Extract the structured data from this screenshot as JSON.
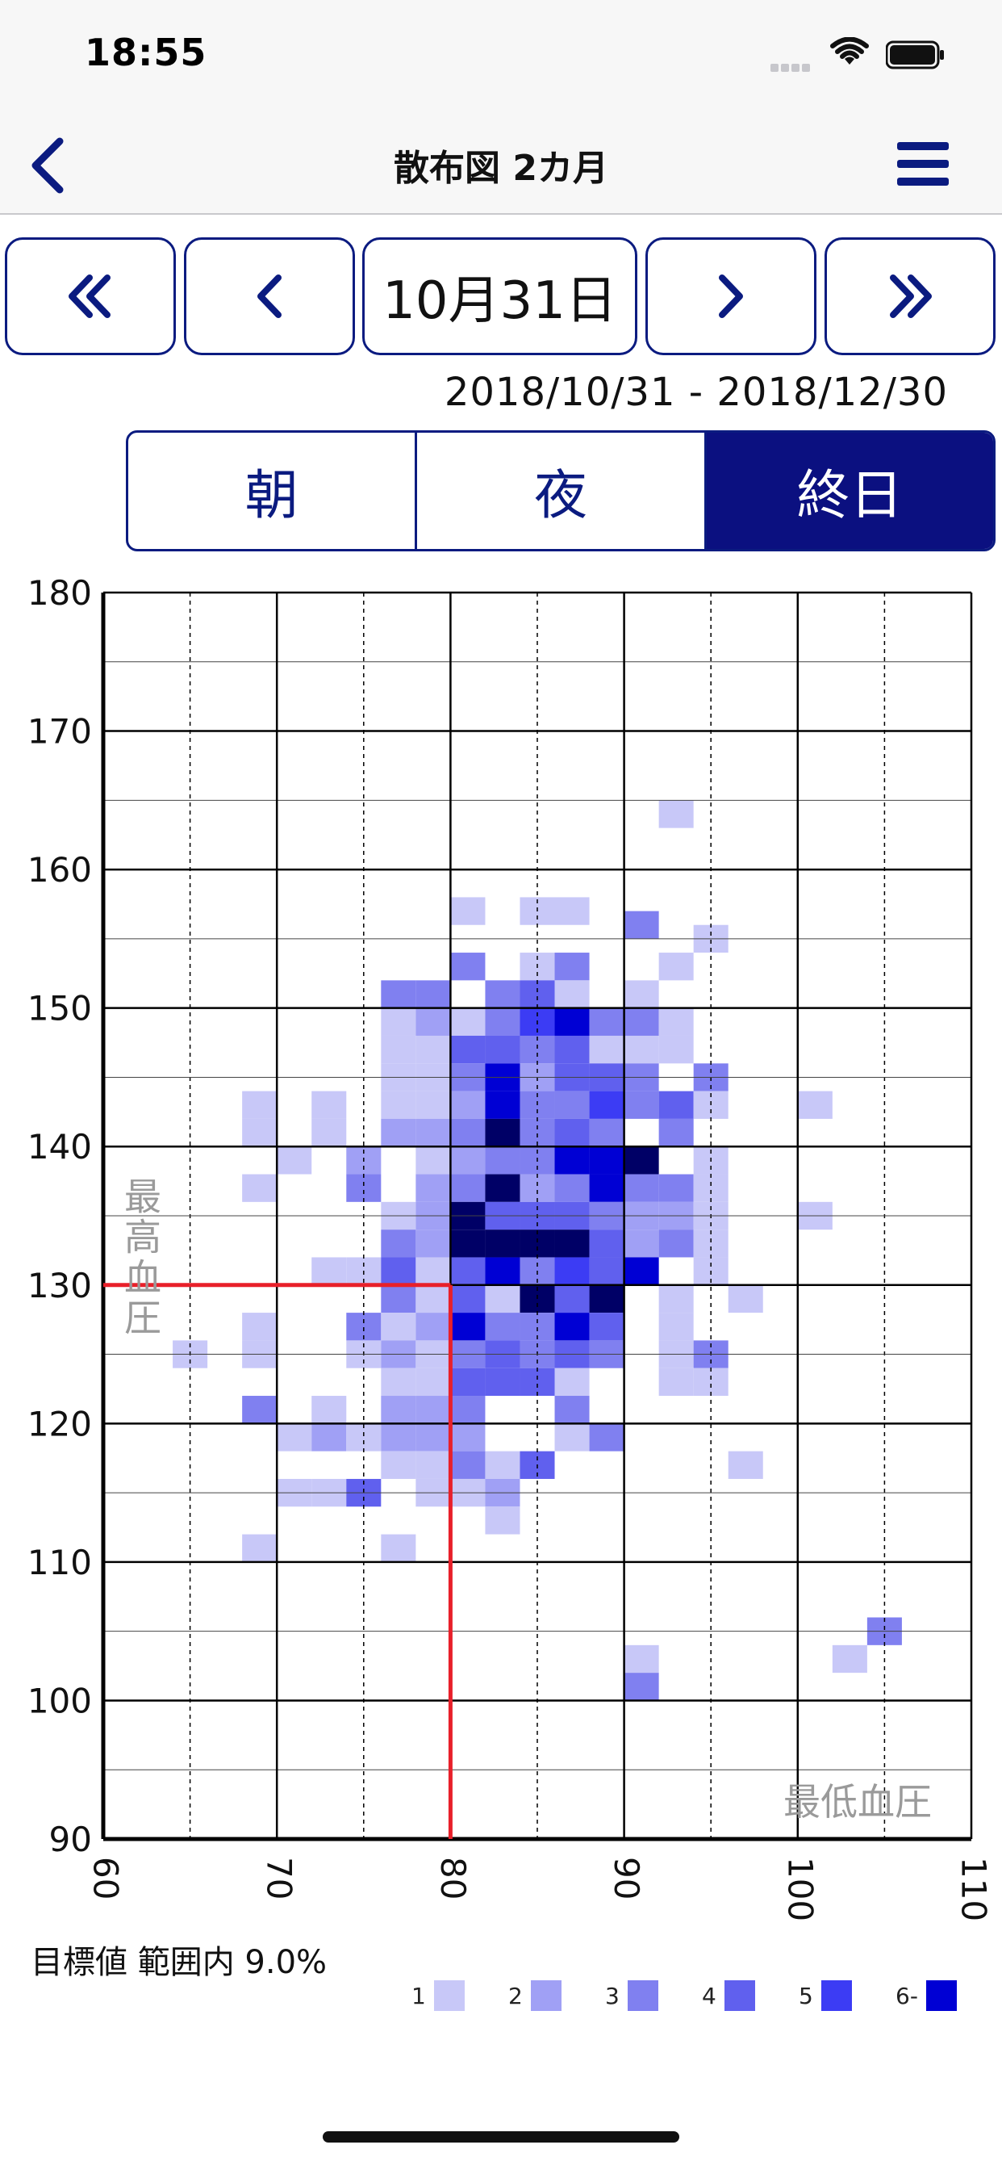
{
  "status": {
    "time": "18:55"
  },
  "nav": {
    "title": "散布図  2カ月"
  },
  "date_nav": {
    "current": "10月31日",
    "buttons": [
      "first-page",
      "previous",
      "next",
      "last-page"
    ]
  },
  "range": {
    "text": "2018/10/31 - 2018/12/30"
  },
  "segments": {
    "items": [
      "朝",
      "夜",
      "終日"
    ],
    "selected": "終日"
  },
  "summary": {
    "target_text": "目標値 範囲内  9.0%"
  },
  "legend": {
    "labels": [
      "1",
      "2",
      "3",
      "4",
      "5",
      "6-"
    ],
    "colors": [
      "#c8c8f8",
      "#a0a0f5",
      "#8080f0",
      "#6060ee",
      "#3c3cf4",
      "#0000d4"
    ]
  },
  "colors": {
    "accent": "#0b1b80",
    "target_line": "#e8202a",
    "grid": "#000000",
    "very_dark": "#000066"
  },
  "chart_data": {
    "type": "heatmap",
    "x_axis_label": "最低血圧",
    "y_axis_label": "最高血圧",
    "xlim": [
      60,
      110
    ],
    "ylim": [
      90,
      180
    ],
    "x_ticks": [
      60,
      70,
      80,
      90,
      100,
      110
    ],
    "y_ticks": [
      90,
      100,
      110,
      120,
      130,
      140,
      150,
      160,
      170,
      180
    ],
    "bin_size": {
      "x": 2,
      "y": 2
    },
    "target": {
      "x": 80,
      "y": 130
    },
    "cells": [
      [
        93,
        164,
        1
      ],
      [
        81,
        157,
        1
      ],
      [
        85,
        157,
        1
      ],
      [
        87,
        157,
        1
      ],
      [
        91,
        156,
        3
      ],
      [
        95,
        155,
        1
      ],
      [
        81,
        153,
        3
      ],
      [
        85,
        153,
        1
      ],
      [
        87,
        153,
        3
      ],
      [
        93,
        153,
        1
      ],
      [
        77,
        151,
        3
      ],
      [
        79,
        151,
        3
      ],
      [
        83,
        151,
        3
      ],
      [
        85,
        151,
        4
      ],
      [
        87,
        151,
        1
      ],
      [
        91,
        151,
        1
      ],
      [
        77,
        149,
        1
      ],
      [
        79,
        149,
        2
      ],
      [
        81,
        149,
        1
      ],
      [
        83,
        149,
        3
      ],
      [
        85,
        149,
        5
      ],
      [
        87,
        149,
        6
      ],
      [
        89,
        149,
        3
      ],
      [
        91,
        149,
        3
      ],
      [
        93,
        149,
        1
      ],
      [
        77,
        147,
        1
      ],
      [
        79,
        147,
        1
      ],
      [
        81,
        147,
        4
      ],
      [
        83,
        147,
        4
      ],
      [
        85,
        147,
        3
      ],
      [
        87,
        147,
        4
      ],
      [
        89,
        147,
        1
      ],
      [
        91,
        147,
        1
      ],
      [
        93,
        147,
        1
      ],
      [
        77,
        145,
        1
      ],
      [
        79,
        145,
        1
      ],
      [
        81,
        145,
        3
      ],
      [
        83,
        145,
        6
      ],
      [
        85,
        145,
        2
      ],
      [
        87,
        145,
        4
      ],
      [
        89,
        145,
        4
      ],
      [
        91,
        145,
        3
      ],
      [
        95,
        145,
        3
      ],
      [
        69,
        143,
        1
      ],
      [
        73,
        143,
        1
      ],
      [
        77,
        143,
        1
      ],
      [
        79,
        143,
        1
      ],
      [
        81,
        143,
        2
      ],
      [
        83,
        143,
        6
      ],
      [
        85,
        143,
        3
      ],
      [
        87,
        143,
        3
      ],
      [
        89,
        143,
        5
      ],
      [
        91,
        143,
        3
      ],
      [
        93,
        143,
        4
      ],
      [
        95,
        143,
        1
      ],
      [
        101,
        143,
        1
      ],
      [
        69,
        141,
        1
      ],
      [
        73,
        141,
        1
      ],
      [
        77,
        141,
        2
      ],
      [
        79,
        141,
        2
      ],
      [
        81,
        141,
        3
      ],
      [
        83,
        141,
        7
      ],
      [
        85,
        141,
        3
      ],
      [
        87,
        141,
        4
      ],
      [
        89,
        141,
        3
      ],
      [
        93,
        141,
        3
      ],
      [
        71,
        139,
        1
      ],
      [
        75,
        139,
        2
      ],
      [
        79,
        139,
        1
      ],
      [
        81,
        139,
        2
      ],
      [
        83,
        139,
        3
      ],
      [
        85,
        139,
        3
      ],
      [
        87,
        139,
        6
      ],
      [
        89,
        139,
        6
      ],
      [
        91,
        139,
        7
      ],
      [
        95,
        139,
        1
      ],
      [
        69,
        137,
        1
      ],
      [
        75,
        137,
        3
      ],
      [
        79,
        137,
        2
      ],
      [
        81,
        137,
        3
      ],
      [
        83,
        137,
        7
      ],
      [
        85,
        137,
        2
      ],
      [
        87,
        137,
        3
      ],
      [
        89,
        137,
        6
      ],
      [
        91,
        137,
        3
      ],
      [
        93,
        137,
        3
      ],
      [
        95,
        137,
        1
      ],
      [
        77,
        135,
        1
      ],
      [
        79,
        135,
        2
      ],
      [
        81,
        135,
        7
      ],
      [
        83,
        135,
        4
      ],
      [
        85,
        135,
        4
      ],
      [
        87,
        135,
        4
      ],
      [
        89,
        135,
        3
      ],
      [
        91,
        135,
        2
      ],
      [
        93,
        135,
        2
      ],
      [
        95,
        135,
        1
      ],
      [
        101,
        135,
        1
      ],
      [
        77,
        133,
        3
      ],
      [
        79,
        133,
        2
      ],
      [
        81,
        133,
        7
      ],
      [
        83,
        133,
        7
      ],
      [
        85,
        133,
        7
      ],
      [
        87,
        133,
        7
      ],
      [
        89,
        133,
        4
      ],
      [
        91,
        133,
        2
      ],
      [
        93,
        133,
        3
      ],
      [
        95,
        133,
        1
      ],
      [
        73,
        131,
        1
      ],
      [
        75,
        131,
        1
      ],
      [
        77,
        131,
        4
      ],
      [
        79,
        131,
        1
      ],
      [
        81,
        131,
        4
      ],
      [
        83,
        131,
        6
      ],
      [
        85,
        131,
        3
      ],
      [
        87,
        131,
        5
      ],
      [
        89,
        131,
        4
      ],
      [
        91,
        131,
        6
      ],
      [
        95,
        131,
        1
      ],
      [
        77,
        129,
        3
      ],
      [
        79,
        129,
        1
      ],
      [
        81,
        129,
        4
      ],
      [
        83,
        129,
        1
      ],
      [
        85,
        129,
        7
      ],
      [
        87,
        129,
        4
      ],
      [
        89,
        129,
        7
      ],
      [
        93,
        129,
        1
      ],
      [
        97,
        129,
        1
      ],
      [
        69,
        127,
        1
      ],
      [
        75,
        127,
        3
      ],
      [
        77,
        127,
        1
      ],
      [
        79,
        127,
        2
      ],
      [
        81,
        127,
        6
      ],
      [
        83,
        127,
        3
      ],
      [
        85,
        127,
        3
      ],
      [
        87,
        127,
        6
      ],
      [
        89,
        127,
        4
      ],
      [
        93,
        127,
        1
      ],
      [
        65,
        125,
        1
      ],
      [
        69,
        125,
        1
      ],
      [
        75,
        125,
        1
      ],
      [
        77,
        125,
        2
      ],
      [
        79,
        125,
        1
      ],
      [
        81,
        125,
        3
      ],
      [
        83,
        125,
        4
      ],
      [
        85,
        125,
        3
      ],
      [
        87,
        125,
        4
      ],
      [
        89,
        125,
        3
      ],
      [
        93,
        125,
        1
      ],
      [
        95,
        125,
        3
      ],
      [
        77,
        123,
        1
      ],
      [
        79,
        123,
        1
      ],
      [
        81,
        123,
        4
      ],
      [
        83,
        123,
        4
      ],
      [
        85,
        123,
        4
      ],
      [
        87,
        123,
        1
      ],
      [
        93,
        123,
        1
      ],
      [
        95,
        123,
        1
      ],
      [
        69,
        121,
        3
      ],
      [
        73,
        121,
        1
      ],
      [
        77,
        121,
        2
      ],
      [
        79,
        121,
        2
      ],
      [
        81,
        121,
        3
      ],
      [
        87,
        121,
        3
      ],
      [
        71,
        119,
        1
      ],
      [
        73,
        119,
        2
      ],
      [
        75,
        119,
        1
      ],
      [
        77,
        119,
        2
      ],
      [
        79,
        119,
        2
      ],
      [
        81,
        119,
        2
      ],
      [
        87,
        119,
        1
      ],
      [
        89,
        119,
        3
      ],
      [
        77,
        117,
        1
      ],
      [
        79,
        117,
        1
      ],
      [
        81,
        117,
        3
      ],
      [
        83,
        117,
        1
      ],
      [
        85,
        117,
        4
      ],
      [
        97,
        117,
        1
      ],
      [
        71,
        115,
        1
      ],
      [
        73,
        115,
        1
      ],
      [
        75,
        115,
        4
      ],
      [
        79,
        115,
        1
      ],
      [
        81,
        115,
        1
      ],
      [
        83,
        115,
        2
      ],
      [
        83,
        113,
        1
      ],
      [
        69,
        111,
        1
      ],
      [
        77,
        111,
        1
      ],
      [
        105,
        105,
        3
      ],
      [
        91,
        103,
        1
      ],
      [
        103,
        103,
        1
      ],
      [
        91,
        101,
        3
      ]
    ]
  }
}
